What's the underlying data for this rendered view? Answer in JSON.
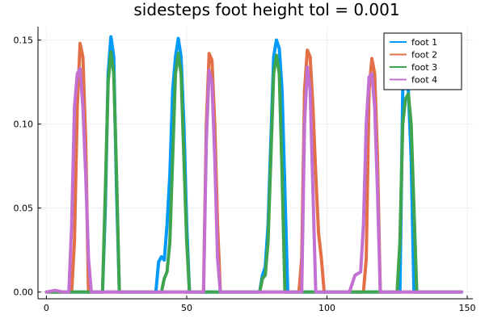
{
  "chart_data": {
    "type": "line",
    "title": "sidesteps foot height tol = 0.001",
    "xlabel": "",
    "ylabel": "",
    "xlim": [
      -3,
      152
    ],
    "ylim": [
      -0.004,
      0.158
    ],
    "xticks": [
      0,
      50,
      100,
      150
    ],
    "yticks": [
      0.0,
      0.05,
      0.1,
      0.15
    ],
    "xtick_labels": [
      "0",
      "50",
      "100",
      "150"
    ],
    "ytick_labels": [
      "0.00",
      "0.05",
      "0.10",
      "0.15"
    ],
    "grid": true,
    "legend_position": "top-right",
    "series": [
      {
        "name": "foot 1",
        "color": "#009AFA",
        "points": [
          [
            0,
            0
          ],
          [
            20,
            0
          ],
          [
            21,
            0.05
          ],
          [
            22,
            0.13
          ],
          [
            23,
            0.152
          ],
          [
            24,
            0.14
          ],
          [
            25,
            0.06
          ],
          [
            26,
            0
          ],
          [
            39,
            0
          ],
          [
            40,
            0.018
          ],
          [
            41,
            0.021
          ],
          [
            42,
            0.019
          ],
          [
            43,
            0.04
          ],
          [
            44,
            0.07
          ],
          [
            45,
            0.12
          ],
          [
            46,
            0.14
          ],
          [
            47,
            0.151
          ],
          [
            48,
            0.14
          ],
          [
            49,
            0.1
          ],
          [
            50,
            0.04
          ],
          [
            51,
            0
          ],
          [
            76,
            0
          ],
          [
            77,
            0.01
          ],
          [
            78,
            0.015
          ],
          [
            79,
            0.04
          ],
          [
            80,
            0.09
          ],
          [
            81,
            0.14
          ],
          [
            82,
            0.15
          ],
          [
            83,
            0.145
          ],
          [
            84,
            0.12
          ],
          [
            85,
            0.06
          ],
          [
            86,
            0
          ],
          [
            126,
            0
          ],
          [
            127,
            0.12
          ],
          [
            128,
            0.125
          ],
          [
            129,
            0.12
          ],
          [
            130,
            0.08
          ],
          [
            131,
            0
          ],
          [
            148,
            0
          ]
        ]
      },
      {
        "name": "foot 2",
        "color": "#E26F46",
        "points": [
          [
            0,
            0
          ],
          [
            9,
            0
          ],
          [
            10,
            0.03
          ],
          [
            11,
            0.11
          ],
          [
            12,
            0.148
          ],
          [
            13,
            0.14
          ],
          [
            14,
            0.09
          ],
          [
            15,
            0
          ],
          [
            56,
            0
          ],
          [
            57,
            0.1
          ],
          [
            58,
            0.142
          ],
          [
            59,
            0.138
          ],
          [
            60,
            0.1
          ],
          [
            61,
            0.04
          ],
          [
            62,
            0
          ],
          [
            90,
            0
          ],
          [
            91,
            0.02
          ],
          [
            92,
            0.12
          ],
          [
            93,
            0.144
          ],
          [
            94,
            0.14
          ],
          [
            95,
            0.11
          ],
          [
            96,
            0.07
          ],
          [
            97,
            0.035
          ],
          [
            98,
            0.02
          ],
          [
            99,
            0
          ],
          [
            113,
            0
          ],
          [
            114,
            0.02
          ],
          [
            115,
            0.12
          ],
          [
            116,
            0.139
          ],
          [
            117,
            0.13
          ],
          [
            118,
            0.08
          ],
          [
            119,
            0
          ],
          [
            148,
            0
          ]
        ]
      },
      {
        "name": "foot 3",
        "color": "#3EA44E",
        "points": [
          [
            0,
            0
          ],
          [
            20,
            0
          ],
          [
            21,
            0.06
          ],
          [
            22,
            0.125
          ],
          [
            23,
            0.143
          ],
          [
            24,
            0.13
          ],
          [
            25,
            0.07
          ],
          [
            26,
            0
          ],
          [
            41,
            0
          ],
          [
            42,
            0.008
          ],
          [
            43,
            0.012
          ],
          [
            44,
            0.03
          ],
          [
            45,
            0.08
          ],
          [
            46,
            0.13
          ],
          [
            47,
            0.142
          ],
          [
            48,
            0.13
          ],
          [
            49,
            0.08
          ],
          [
            50,
            0.03
          ],
          [
            51,
            0
          ],
          [
            76,
            0
          ],
          [
            77,
            0.008
          ],
          [
            78,
            0.01
          ],
          [
            79,
            0.03
          ],
          [
            80,
            0.08
          ],
          [
            81,
            0.13
          ],
          [
            82,
            0.141
          ],
          [
            83,
            0.13
          ],
          [
            84,
            0.07
          ],
          [
            85,
            0
          ],
          [
            125,
            0
          ],
          [
            126,
            0.03
          ],
          [
            127,
            0.1
          ],
          [
            128,
            0.115
          ],
          [
            129,
            0.118
          ],
          [
            130,
            0.1
          ],
          [
            131,
            0.05
          ],
          [
            132,
            0
          ],
          [
            148,
            0
          ]
        ]
      },
      {
        "name": "foot 4",
        "color": "#C271D2",
        "points": [
          [
            0,
            0
          ],
          [
            3,
            0.001
          ],
          [
            6,
            0
          ],
          [
            8,
            0
          ],
          [
            9,
            0.04
          ],
          [
            10,
            0.11
          ],
          [
            11,
            0.13
          ],
          [
            12,
            0.133
          ],
          [
            13,
            0.11
          ],
          [
            14,
            0.07
          ],
          [
            15,
            0.02
          ],
          [
            16,
            0
          ],
          [
            56,
            0
          ],
          [
            57,
            0.09
          ],
          [
            58,
            0.132
          ],
          [
            59,
            0.125
          ],
          [
            60,
            0.08
          ],
          [
            61,
            0.02
          ],
          [
            62,
            0
          ],
          [
            91,
            0
          ],
          [
            92,
            0.1
          ],
          [
            93,
            0.134
          ],
          [
            94,
            0.12
          ],
          [
            95,
            0.06
          ],
          [
            96,
            0
          ],
          [
            108,
            0
          ],
          [
            110,
            0.01
          ],
          [
            112,
            0.012
          ],
          [
            113,
            0.04
          ],
          [
            114,
            0.1
          ],
          [
            115,
            0.128
          ],
          [
            116,
            0.13
          ],
          [
            117,
            0.11
          ],
          [
            118,
            0.06
          ],
          [
            119,
            0
          ],
          [
            148,
            0
          ]
        ]
      }
    ]
  }
}
